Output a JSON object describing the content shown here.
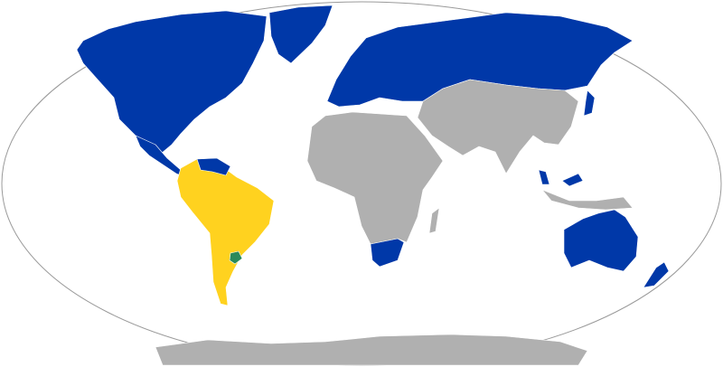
{
  "map": {
    "projection": "Robinson",
    "colors": {
      "ocean": "#ffffff",
      "outline": "#9a9a9a",
      "blue_group": "#0038a8",
      "yellow_group": "#ffd21f",
      "green_highlight": "#2a8a5a",
      "other": "#b0b0b0"
    },
    "regions": {
      "north_america": "blue_group",
      "greenland": "blue_group",
      "central_america_caribbean": "blue_group",
      "venezuela": "blue_group",
      "south_america": "yellow_group",
      "uruguay": "green_highlight",
      "europe_russia": "blue_group",
      "middle_east_asia": "other",
      "africa": "other",
      "south_africa": "blue_group",
      "australia": "blue_group",
      "new_zealand": "blue_group",
      "japan": "blue_group",
      "malaysia": "blue_group",
      "indonesia": "other",
      "antarctica": "other"
    }
  }
}
